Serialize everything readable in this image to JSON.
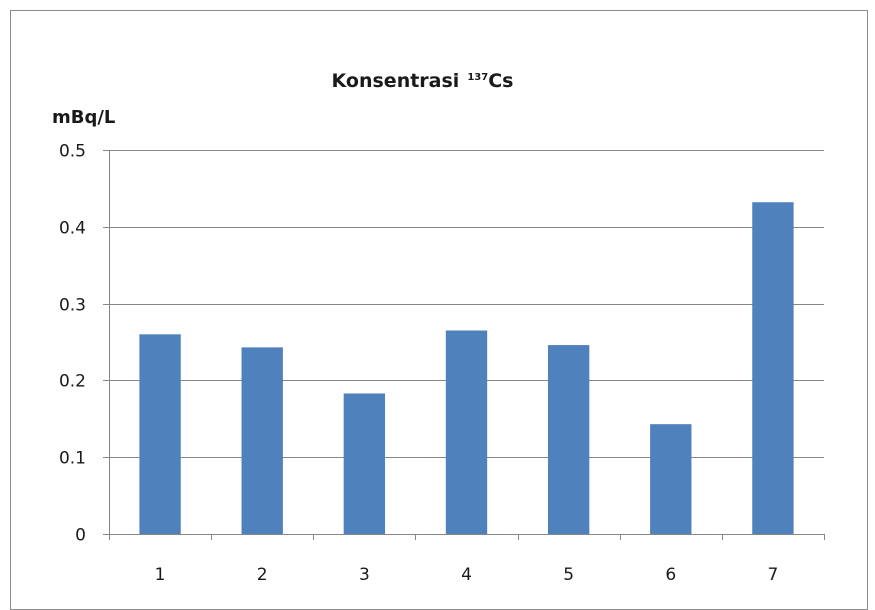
{
  "chart_data": {
    "type": "bar",
    "title": "Konsentrasi",
    "title_superscript": "137",
    "title_suffix": "Cs",
    "ylabel": "mBq/L",
    "xlabel": "",
    "categories": [
      "1",
      "2",
      "3",
      "4",
      "5",
      "6",
      "7"
    ],
    "values": [
      0.26,
      0.243,
      0.183,
      0.265,
      0.246,
      0.143,
      0.432
    ],
    "ylim": [
      0,
      0.5
    ],
    "yticks": [
      "0",
      "0.1",
      "0.2",
      "0.3",
      "0.4",
      "0.5"
    ],
    "grid": true,
    "legend": "none",
    "colors": {
      "bar": "#4f81bd",
      "grid": "#878787",
      "axis": "#878787"
    }
  }
}
